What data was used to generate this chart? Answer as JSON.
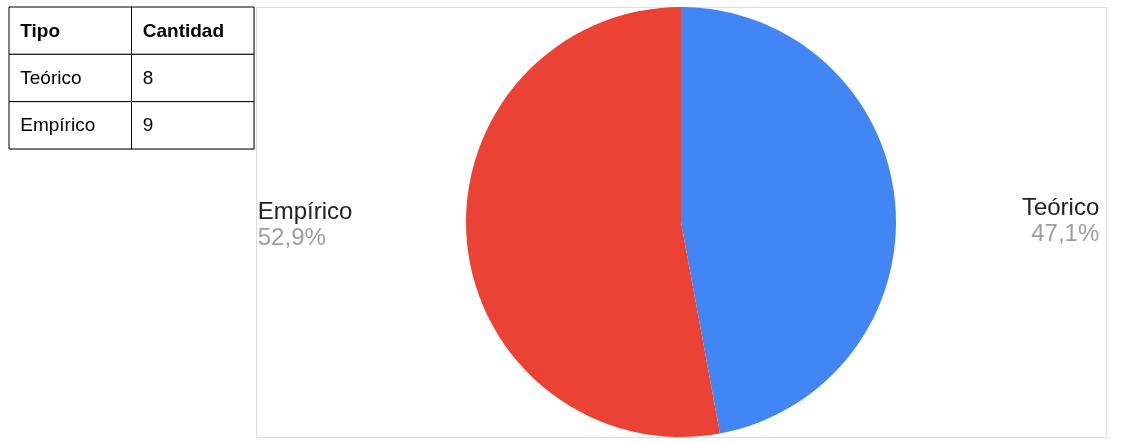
{
  "chart_data": [
    {
      "type": "other",
      "annotations": [
        "Tipo",
        "Cantidad",
        "Teórico",
        "8",
        "Empírico",
        "9"
      ]
    },
    {
      "type": "pie",
      "categories": [
        "Teórico",
        "Empírico"
      ],
      "values": [
        47.1,
        52.9
      ],
      "colors": [
        "#4285f4",
        "#ea4335"
      ],
      "value_labels": [
        "47,1%",
        "52,9%"
      ]
    }
  ]
}
